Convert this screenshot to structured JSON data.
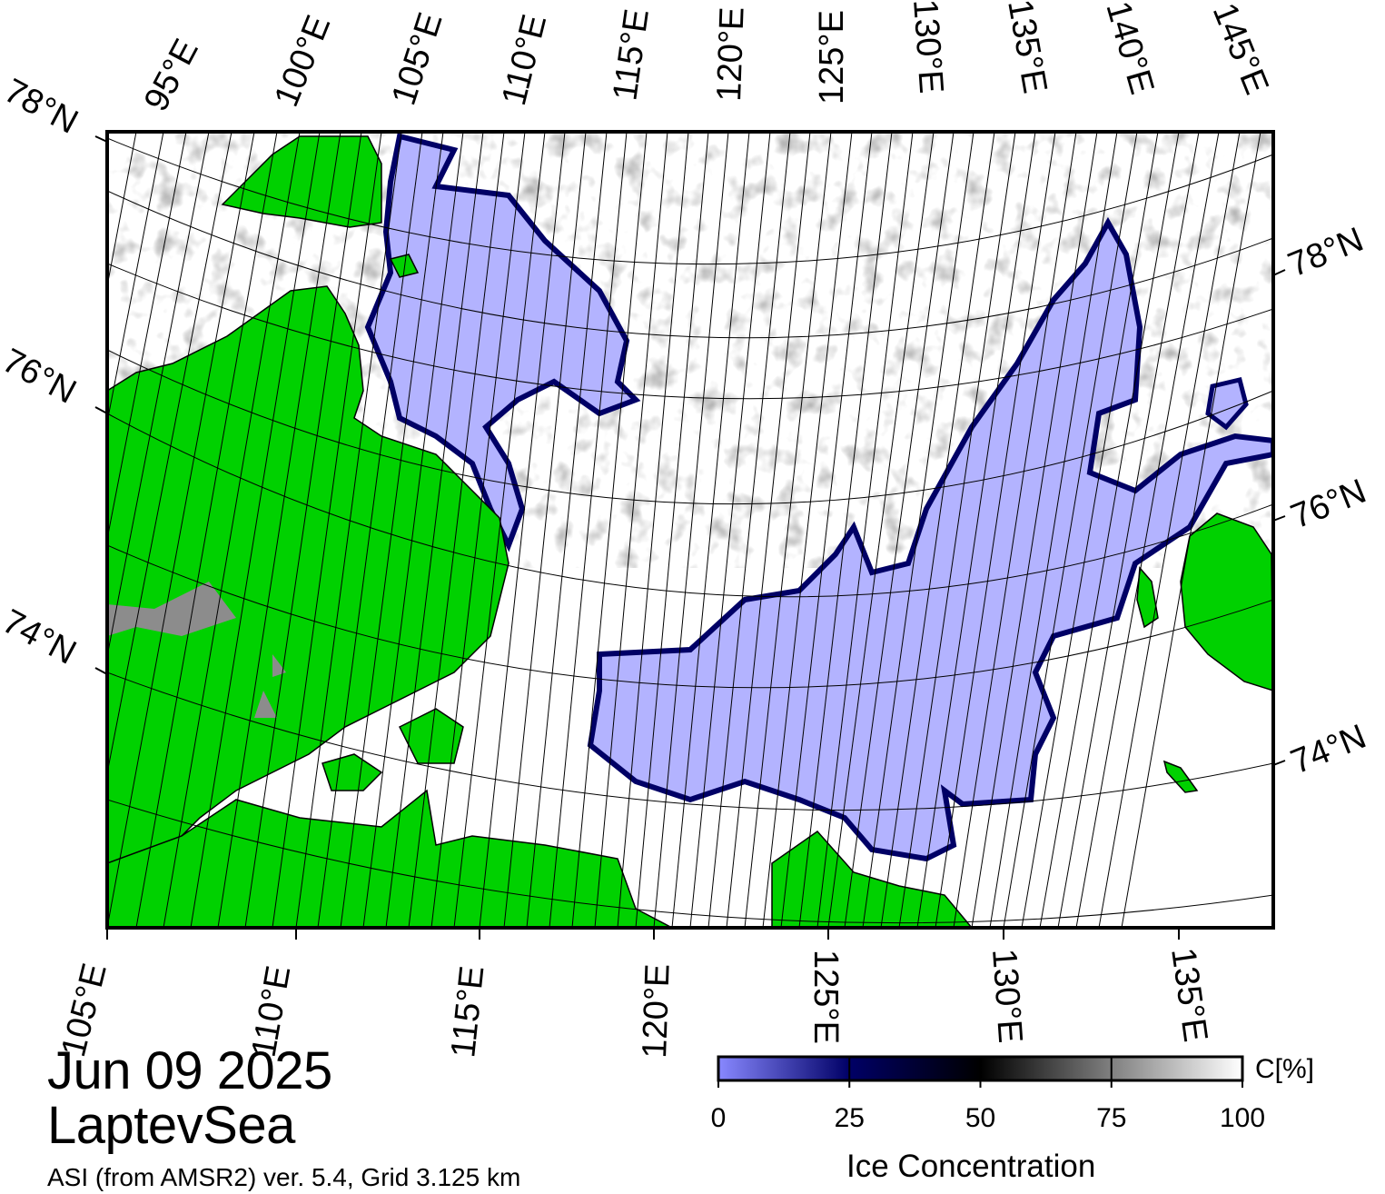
{
  "title": {
    "date": "Jun 09 2025",
    "region": "LaptevSea",
    "source": "ASI (from AMSR2) ver. 5.4,  Grid 3.125 km"
  },
  "map": {
    "top_lon_labels": [
      "95°E",
      "100°E",
      "105°E",
      "110°E",
      "115°E",
      "120°E",
      "125°E",
      "130°E",
      "135°E",
      "140°E",
      "145°E"
    ],
    "bottom_lon_labels": [
      "105°E",
      "110°E",
      "115°E",
      "120°E",
      "125°E",
      "130°E",
      "135°E"
    ],
    "left_lat_labels": [
      "78°N",
      "76°N",
      "74°N"
    ],
    "right_lat_labels": [
      "78°N",
      "76°N",
      "74°N"
    ],
    "colors": {
      "land": "#00d100",
      "land_ice": "#8c8c8c",
      "open_water": "#b3b3ff",
      "ice_edge": "#000066",
      "high_ice": "#ffffff",
      "graticule": "#000000"
    }
  },
  "colorbar": {
    "label": "Ice Concentration",
    "unit": "C[%]",
    "ticks": [
      "0",
      "25",
      "50",
      "75",
      "100"
    ],
    "range": [
      0,
      100
    ],
    "stops": [
      "#8888ff",
      "#000066",
      "#000000",
      "#ffffff"
    ]
  }
}
